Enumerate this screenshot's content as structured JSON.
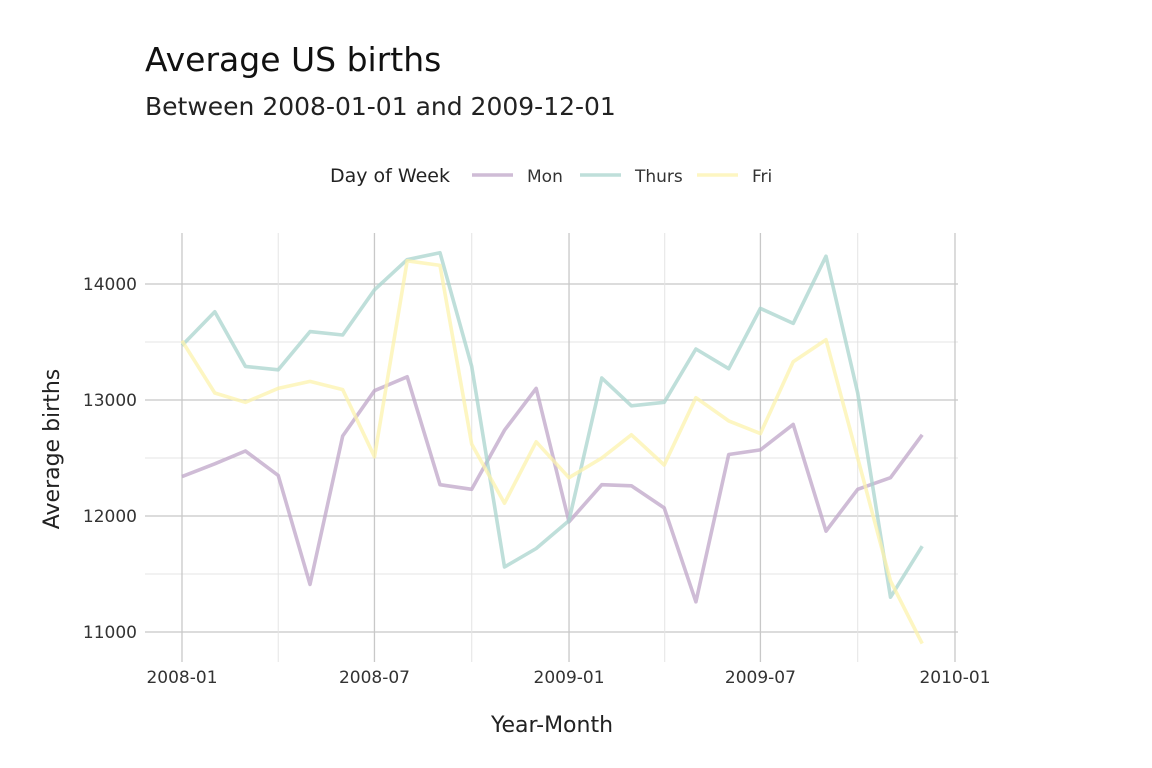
{
  "chart_data": {
    "type": "line",
    "title": "Average US births",
    "subtitle": "Between 2008-01-01 and 2009-12-01",
    "xlabel": "Year-Month",
    "ylabel": "Average births",
    "legend_title": "Day of Week",
    "legend_position": "top",
    "grid": true,
    "x_ticks": [
      "2008-01",
      "2008-07",
      "2009-01",
      "2009-07",
      "2010-01"
    ],
    "y_ticks": [
      11000,
      12000,
      13000,
      14000
    ],
    "xlim": [
      "2007-12-20",
      "2010-01-01"
    ],
    "ylim": [
      10850,
      14430
    ],
    "x": [
      "2008-01",
      "2008-02",
      "2008-03",
      "2008-04",
      "2008-05",
      "2008-06",
      "2008-07",
      "2008-08",
      "2008-09",
      "2008-10",
      "2008-11",
      "2008-12",
      "2009-01",
      "2009-02",
      "2009-03",
      "2009-04",
      "2009-05",
      "2009-06",
      "2009-07",
      "2009-08",
      "2009-09",
      "2009-10",
      "2009-11",
      "2009-12"
    ],
    "series": [
      {
        "name": "Mon",
        "color": "#bfa6c8",
        "values": [
          12340,
          12450,
          12560,
          12350,
          11410,
          12690,
          13080,
          13200,
          12270,
          12230,
          12740,
          13100,
          11950,
          12270,
          12260,
          12070,
          11260,
          12530,
          12570,
          12790,
          11870,
          12230,
          12330,
          12700
        ]
      },
      {
        "name": "Thurs",
        "color": "#a9d4ce",
        "values": [
          13470,
          13760,
          13290,
          13260,
          13590,
          13560,
          13950,
          14210,
          14270,
          13290,
          11560,
          11720,
          11960,
          13190,
          12950,
          12980,
          13440,
          13270,
          13790,
          13660,
          14240,
          13060,
          11300,
          11740
        ]
      },
      {
        "name": "Fri",
        "color": "#fcf3ae",
        "values": [
          13510,
          13060,
          12980,
          13100,
          13160,
          13090,
          12510,
          14200,
          14160,
          12620,
          12110,
          12640,
          12330,
          12500,
          12700,
          12440,
          13020,
          12820,
          12710,
          13330,
          13520,
          12500,
          11440,
          10900
        ]
      }
    ]
  }
}
